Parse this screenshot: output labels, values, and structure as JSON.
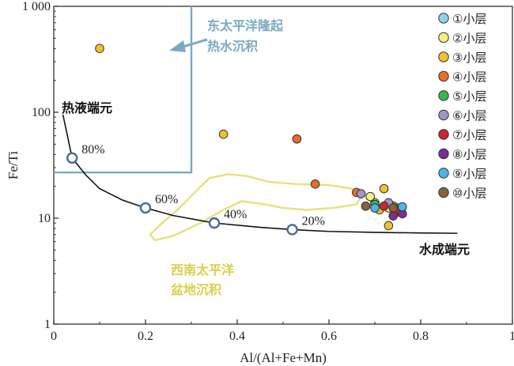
{
  "chart_data": {
    "type": "scatter",
    "xlabel": "Al/(Al+Fe+Mn)",
    "ylabel": "Fe/Ti",
    "xlim": [
      0,
      1
    ],
    "ylim": [
      1,
      1000
    ],
    "yscale": "log",
    "xticks": [
      0,
      0.2,
      0.4,
      0.6,
      0.8,
      1
    ],
    "xtick_labels": [
      "0",
      "0.2",
      "0.4",
      "0.6",
      "0.8",
      "1"
    ],
    "yticks": [
      1,
      10,
      100,
      1000
    ],
    "ytick_labels": [
      "1",
      "10",
      "100",
      "1 000"
    ],
    "grid": false,
    "legend_position": "top-right",
    "region_labels": {
      "epr": [
        "东太平洋隆起",
        "热水沉积"
      ],
      "swp": [
        "西南太平洋",
        "盆地沉积"
      ],
      "hydrothermal_end": "热液端元",
      "hydrogenous_end": "水成端元"
    },
    "colors": {
      "epr": "#7aaac0",
      "swp": "#e5e27a",
      "mixing_circle": "#4c6b92",
      "curve": "#111111"
    },
    "mixing_curve": {
      "x": [
        0.02,
        0.04,
        0.07,
        0.1,
        0.15,
        0.2,
        0.26,
        0.35,
        0.45,
        0.52,
        0.6,
        0.7,
        0.8,
        0.88
      ],
      "y": [
        95,
        37,
        25.5,
        19,
        14.8,
        12.5,
        10.6,
        9.0,
        8.2,
        7.8,
        7.5,
        7.35,
        7.25,
        7.2
      ]
    },
    "mixing_points": [
      {
        "x": 0.04,
        "y": 37,
        "label": "80%"
      },
      {
        "x": 0.2,
        "y": 12.5,
        "label": "60%"
      },
      {
        "x": 0.35,
        "y": 9.0,
        "label": "40%"
      },
      {
        "x": 0.52,
        "y": 7.8,
        "label": "20%"
      }
    ],
    "epr_region": {
      "x": [
        0,
        0.3
      ],
      "y": [
        27,
        1000
      ]
    },
    "swp_region": {
      "x": [
        0.34,
        0.38,
        0.42,
        0.47,
        0.53,
        0.6,
        0.65,
        0.67,
        0.66,
        0.61,
        0.55,
        0.5,
        0.46,
        0.41,
        0.37,
        0.32,
        0.26,
        0.22,
        0.21,
        0.23,
        0.27,
        0.31,
        0.34
      ],
      "y": [
        24,
        26,
        25,
        22,
        21,
        20.5,
        19,
        16,
        13.5,
        12.5,
        12,
        12.5,
        13.5,
        14.5,
        12,
        9,
        6.8,
        6.2,
        7,
        8.5,
        12,
        18,
        24
      ]
    },
    "series": [
      {
        "name": "①小层",
        "color": "#8fd3ea",
        "points": [
          [
            0.7,
            14
          ],
          [
            0.75,
            12.5
          ]
        ]
      },
      {
        "name": "②小层",
        "color": "#f4f07a",
        "points": [
          [
            0.69,
            16
          ],
          [
            0.73,
            12.5
          ]
        ]
      },
      {
        "name": "③小层",
        "color": "#f3c12d",
        "points": [
          [
            0.1,
            400
          ],
          [
            0.37,
            62
          ],
          [
            0.72,
            19
          ],
          [
            0.73,
            8.5
          ],
          [
            0.71,
            12
          ]
        ]
      },
      {
        "name": "④小层",
        "color": "#e86d2c",
        "points": [
          [
            0.53,
            56
          ],
          [
            0.57,
            21
          ],
          [
            0.66,
            17.5
          ]
        ]
      },
      {
        "name": "⑤小层",
        "color": "#3cb54a",
        "points": [
          [
            0.7,
            13.5
          ],
          [
            0.74,
            13
          ]
        ]
      },
      {
        "name": "⑥小层",
        "color": "#9d97c6",
        "points": [
          [
            0.67,
            17
          ],
          [
            0.73,
            14
          ]
        ]
      },
      {
        "name": "⑦小层",
        "color": "#cf2232",
        "points": [
          [
            0.72,
            13
          ],
          [
            0.75,
            11.5
          ]
        ]
      },
      {
        "name": "⑧小层",
        "color": "#7b2f8f",
        "points": [
          [
            0.74,
            10.5
          ],
          [
            0.76,
            11
          ]
        ]
      },
      {
        "name": "⑨小层",
        "color": "#4bb6e7",
        "points": [
          [
            0.7,
            12.5
          ],
          [
            0.76,
            12.8
          ]
        ]
      },
      {
        "name": "⑩小层",
        "color": "#8a6238",
        "points": [
          [
            0.68,
            13
          ],
          [
            0.74,
            12.5
          ]
        ]
      }
    ]
  }
}
